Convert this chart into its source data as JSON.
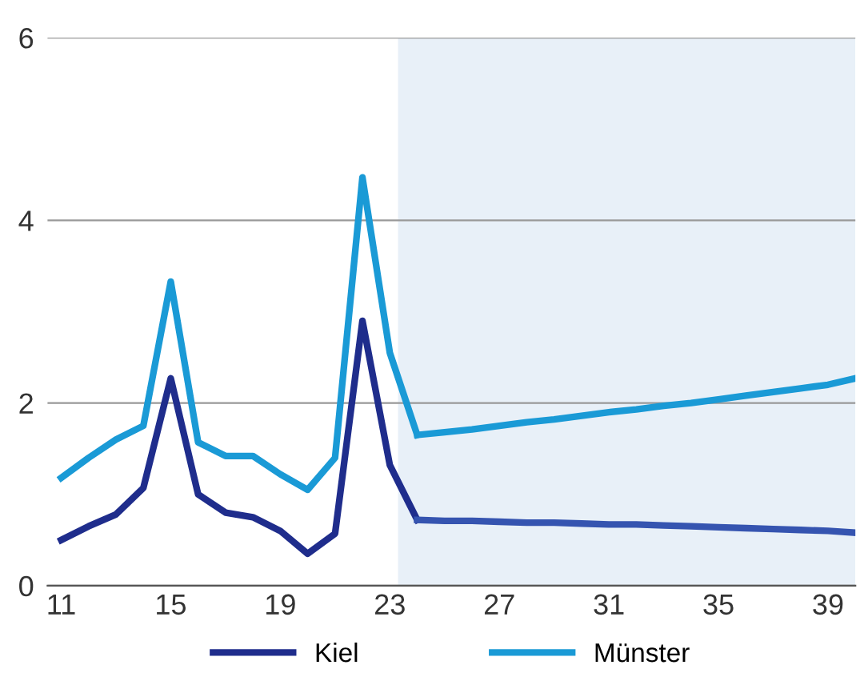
{
  "chart_data": {
    "type": "line",
    "series": [
      {
        "name": "Kiel",
        "color": "#1f2d8c",
        "x": [
          11,
          12,
          13,
          14,
          15,
          16,
          17,
          18,
          19,
          20,
          21,
          22,
          23,
          24
        ],
        "values": [
          0.5,
          0.65,
          0.78,
          1.07,
          2.27,
          1.0,
          0.8,
          0.75,
          0.6,
          0.35,
          0.57,
          2.9,
          1.32,
          0.72
        ]
      },
      {
        "name": "Münster",
        "color": "#1a9ad6",
        "x": [
          11,
          12,
          13,
          14,
          15,
          16,
          17,
          18,
          19,
          20,
          21,
          22,
          23,
          24
        ],
        "values": [
          1.18,
          1.4,
          1.6,
          1.75,
          3.33,
          1.57,
          1.42,
          1.42,
          1.22,
          1.05,
          1.4,
          4.47,
          2.55,
          1.65
        ]
      },
      {
        "color": "#3554b0",
        "x": [
          24,
          25,
          26,
          27,
          28,
          29,
          30,
          31,
          32,
          33,
          34,
          35,
          36,
          37,
          38,
          39,
          40
        ],
        "values": [
          0.72,
          0.71,
          0.71,
          0.7,
          0.69,
          0.69,
          0.68,
          0.67,
          0.67,
          0.66,
          0.65,
          0.64,
          0.63,
          0.62,
          0.61,
          0.6,
          0.58
        ]
      },
      {
        "color": "#1a9ad6",
        "x": [
          24,
          25,
          26,
          27,
          28,
          29,
          30,
          31,
          32,
          33,
          34,
          35,
          36,
          37,
          38,
          39,
          40
        ],
        "values": [
          1.65,
          1.68,
          1.71,
          1.75,
          1.79,
          1.82,
          1.86,
          1.9,
          1.93,
          1.97,
          2.0,
          2.04,
          2.08,
          2.12,
          2.16,
          2.2,
          2.27
        ]
      }
    ],
    "bands": [
      {
        "axis": "x",
        "from": 23.3,
        "to": 40,
        "color": "#e8f0f8"
      }
    ],
    "xlim": [
      10.5,
      40
    ],
    "ylim": [
      0,
      6
    ],
    "xticks": [
      11,
      15,
      19,
      23,
      27,
      31,
      35,
      39
    ],
    "yticks": [
      0,
      2,
      4,
      6
    ],
    "grid": "y",
    "legend": "bottom"
  }
}
